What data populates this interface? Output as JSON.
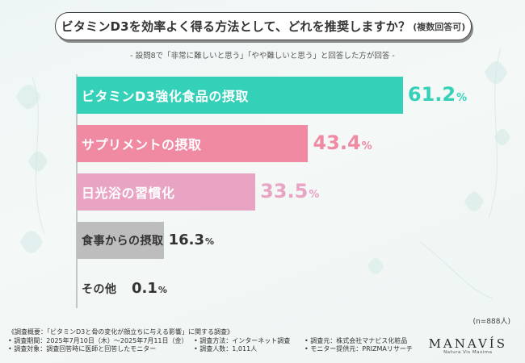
{
  "title": {
    "main": "ビタミンD3を効率よく得る方法として、どれを推奨しますか？",
    "note": "(複数回答可)"
  },
  "subtitle": "- 設問8で「非常に難しいと思う」「やや難しいと思う」と回答した方が回答 -",
  "colors": {
    "teal": "#34d1b8",
    "pink": "#f08aa3",
    "lightpink": "#e9a4c4",
    "gray": "#bdbdbd",
    "label_dark": "#333333",
    "label_light": "#ffffff"
  },
  "chart_data": {
    "type": "bar",
    "orientation": "horizontal",
    "categories": [
      "ビタミンD3強化食品の摂取",
      "サプリメントの摂取",
      "日光浴の習慣化",
      "食事からの摂取",
      "その他"
    ],
    "values": [
      61.2,
      43.4,
      33.5,
      16.3,
      0.1
    ],
    "value_labels": [
      {
        "num": "61.2",
        "unit": "%"
      },
      {
        "num": "43.4",
        "unit": "%"
      },
      {
        "num": "33.5",
        "unit": "%"
      },
      {
        "num": "16.3",
        "unit": "%"
      },
      {
        "num": "0.1",
        "unit": "%"
      }
    ],
    "xlim": [
      0,
      70
    ],
    "n_label": "(n=888人)"
  },
  "footer": {
    "rows": [
      [
        "《調査概要：「ビタミンD3と骨の変化が顔立ちに与える影響」に関する調査》"
      ],
      [
        "• 調査期間：2025年7月10日（木）～2025年7月11日（金）",
        "• 調査方法：インターネット調査",
        "• 調査元：株式会社マナビス化粧品"
      ],
      [
        "• 調査対象：調査回答時に医師と回答したモニター",
        "• 調査人数：1,011人",
        "• モニター提供元：PRIZMAリサーチ"
      ]
    ]
  },
  "logo": {
    "main": "MANAVÍS",
    "sub": "Natura Vis Maxima"
  }
}
